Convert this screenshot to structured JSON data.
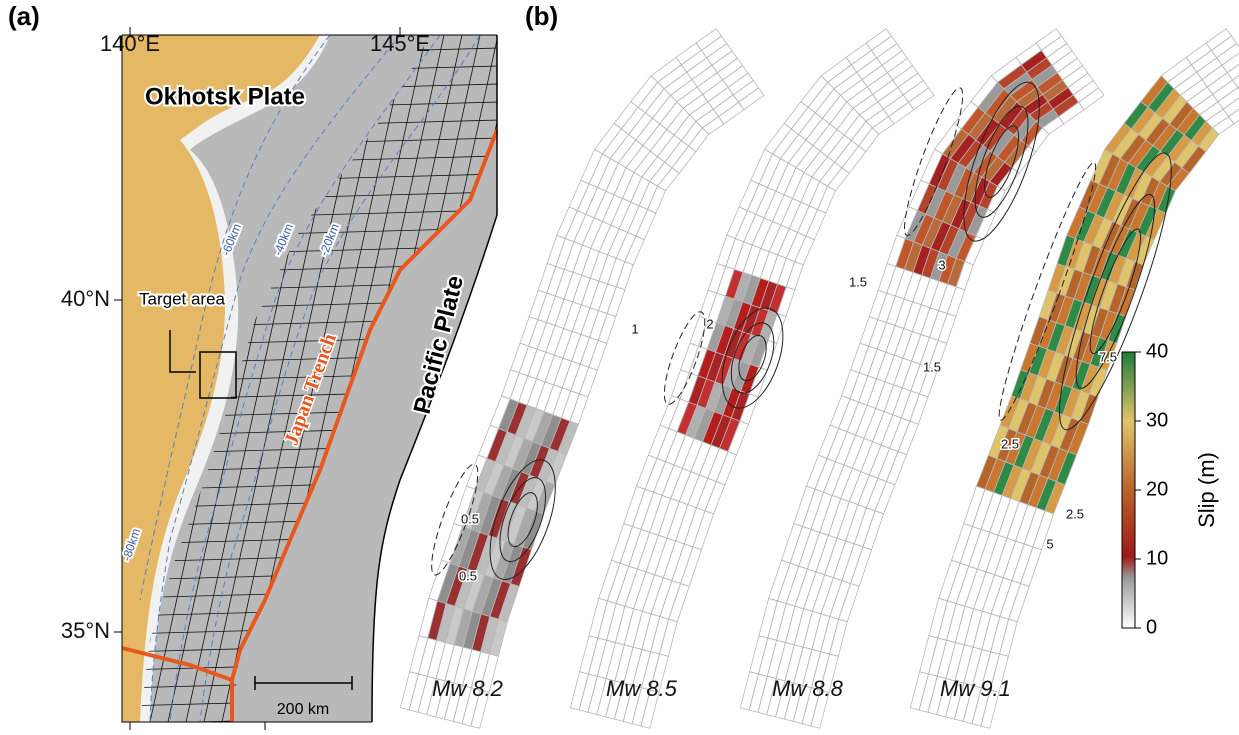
{
  "panels": {
    "a": {
      "label": "(a)",
      "lon_ticks": [
        "140°E",
        "145°E"
      ],
      "lat_ticks": [
        "40°N",
        "35°N"
      ],
      "plates": [
        "Okhotsk Plate",
        "Pacific Plate"
      ],
      "trench": "Japan Trench",
      "target_area": "Target area",
      "depth_contours": [
        "-60km",
        "-40km",
        "-20km",
        "-80km"
      ],
      "scale_bar": "200 km"
    },
    "b": {
      "label": "(b)",
      "models": [
        {
          "magnitude": "Mw 8.2",
          "contour_labels": [
            "0.5",
            "0.5"
          ]
        },
        {
          "magnitude": "Mw 8.5",
          "contour_labels": [
            "1",
            "2"
          ]
        },
        {
          "magnitude": "Mw 8.8",
          "contour_labels": [
            "1.5",
            "3",
            "1.5"
          ]
        },
        {
          "magnitude": "Mw 9.1",
          "contour_labels": [
            "2.5",
            "7.5",
            "5",
            "2.5"
          ]
        }
      ],
      "colorbar": {
        "label": "Slip (m)",
        "lim": [
          0,
          40
        ],
        "ticks": [
          0,
          10,
          20,
          30,
          40
        ]
      }
    }
  }
}
